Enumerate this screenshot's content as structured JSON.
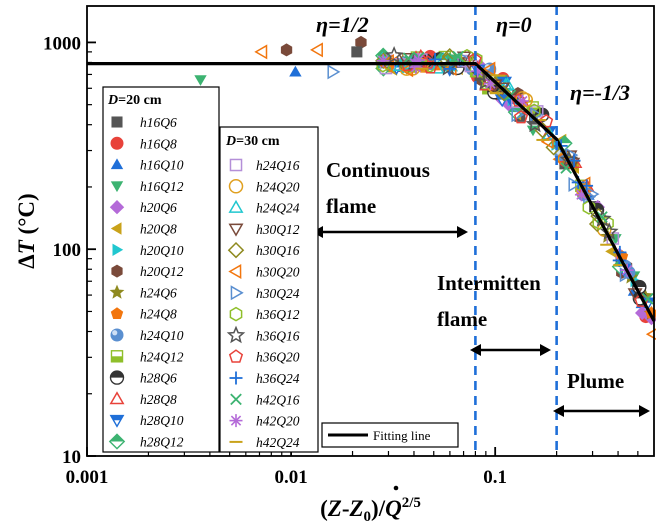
{
  "chart_data": {
    "type": "scatter",
    "x_axis": {
      "label_parts": [
        "(",
        "Z",
        "-",
        "Z",
        "0",
        ")/",
        "Q",
        "2/5"
      ],
      "scale": "log",
      "range": [
        0.001,
        0.6
      ],
      "ticks": [
        0.001,
        0.01,
        0.1
      ],
      "tick_labels": [
        "0.001",
        "0.01",
        "0.1"
      ]
    },
    "y_axis": {
      "label_parts": [
        "Δ",
        "T",
        " (°C)"
      ],
      "scale": "log",
      "range": [
        10,
        1500
      ],
      "ticks": [
        10,
        100,
        1000
      ],
      "tick_labels": [
        "10",
        "100",
        "1000"
      ]
    },
    "regimes": [
      {
        "label": "η=1/2",
        "x": 0.03,
        "y": 1150
      },
      {
        "label": "η=0",
        "x": 0.13,
        "y": 1150
      },
      {
        "label": "η=-1/3",
        "x": 0.38,
        "y": 800
      }
    ],
    "annotations": [
      {
        "lines": [
          "Continuous",
          "flame"
        ],
        "x_range": [
          0.01,
          0.08
        ]
      },
      {
        "lines": [
          "Intermitten",
          "flame"
        ],
        "x_range": [
          0.08,
          0.2
        ]
      },
      {
        "lines": [
          "Plume"
        ],
        "x_range": [
          0.2,
          0.6
        ]
      }
    ],
    "boundaries": [
      0.08,
      0.2
    ],
    "fit_line": {
      "label": "Fitting line",
      "points": [
        [
          0.001,
          790
        ],
        [
          0.08,
          790
        ],
        [
          0.2,
          340
        ],
        [
          0.6,
          45
        ]
      ]
    },
    "legend_groups": [
      {
        "title": "D=20 cm",
        "series": [
          {
            "name": "h16Q6",
            "marker": "square",
            "color": "#555555",
            "filled": true
          },
          {
            "name": "h16Q8",
            "marker": "circle",
            "color": "#e8423a",
            "filled": true
          },
          {
            "name": "h16Q10",
            "marker": "triangle-up",
            "color": "#1f6fd8",
            "filled": true
          },
          {
            "name": "h16Q12",
            "marker": "triangle-down",
            "color": "#3cb371",
            "filled": true
          },
          {
            "name": "h20Q6",
            "marker": "diamond",
            "color": "#b46ad8",
            "filled": true
          },
          {
            "name": "h20Q8",
            "marker": "triangle-left",
            "color": "#c9a21a",
            "filled": true
          },
          {
            "name": "h20Q10",
            "marker": "triangle-right",
            "color": "#21c7cf",
            "filled": true
          },
          {
            "name": "h20Q12",
            "marker": "hexagon",
            "color": "#7a4a3a",
            "filled": true
          },
          {
            "name": "h24Q6",
            "marker": "star",
            "color": "#8f8a1f",
            "filled": true
          },
          {
            "name": "h24Q8",
            "marker": "pentagon",
            "color": "#f2760e",
            "filled": true
          },
          {
            "name": "h24Q10",
            "marker": "sphere",
            "color": "#5a8fd0",
            "filled": true
          },
          {
            "name": "h24Q12",
            "marker": "half-square",
            "color": "#8fbf2a",
            "filled": true
          },
          {
            "name": "h28Q6",
            "marker": "half-circle",
            "color": "#333333",
            "filled": true
          },
          {
            "name": "h28Q8",
            "marker": "tri-up-open",
            "color": "#e8423a",
            "filled": false
          },
          {
            "name": "h28Q10",
            "marker": "tri-down-half",
            "color": "#1f6fd8",
            "filled": true
          },
          {
            "name": "h28Q12",
            "marker": "diamond-half",
            "color": "#3cb371",
            "filled": true
          }
        ]
      },
      {
        "title": "D=30 cm",
        "series": [
          {
            "name": "h24Q16",
            "marker": "square",
            "color": "#b48fd8",
            "filled": false
          },
          {
            "name": "h24Q20",
            "marker": "circle",
            "color": "#e0a020",
            "filled": false
          },
          {
            "name": "h24Q24",
            "marker": "triangle-up",
            "color": "#21c7cf",
            "filled": false
          },
          {
            "name": "h30Q12",
            "marker": "triangle-down",
            "color": "#7a4a3a",
            "filled": false
          },
          {
            "name": "h30Q16",
            "marker": "diamond",
            "color": "#8f8a1f",
            "filled": false
          },
          {
            "name": "h30Q20",
            "marker": "triangle-left",
            "color": "#f2760e",
            "filled": false
          },
          {
            "name": "h30Q24",
            "marker": "triangle-right",
            "color": "#5a8fd0",
            "filled": false
          },
          {
            "name": "h36Q12",
            "marker": "hexagon",
            "color": "#8fbf2a",
            "filled": false
          },
          {
            "name": "h36Q16",
            "marker": "star",
            "color": "#555555",
            "filled": false
          },
          {
            "name": "h36Q20",
            "marker": "pentagon",
            "color": "#e8423a",
            "filled": false
          },
          {
            "name": "h36Q24",
            "marker": "plus",
            "color": "#1f6fd8",
            "filled": false
          },
          {
            "name": "h42Q16",
            "marker": "x",
            "color": "#3cb371",
            "filled": false
          },
          {
            "name": "h42Q20",
            "marker": "asterisk",
            "color": "#b46ad8",
            "filled": false
          },
          {
            "name": "h42Q24",
            "marker": "dash",
            "color": "#c9a21a",
            "filled": false
          }
        ]
      }
    ]
  }
}
